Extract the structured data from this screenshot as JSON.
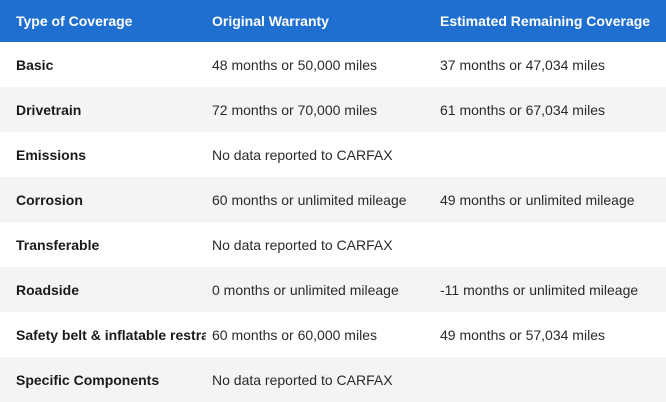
{
  "header": {
    "type_of_coverage": "Type of Coverage",
    "original_warranty": "Original Warranty",
    "estimated_remaining": "Estimated Remaining Coverage"
  },
  "rows": [
    {
      "type": "Basic",
      "original": "48 months or 50,000 miles",
      "remaining": "37 months or 47,034 miles"
    },
    {
      "type": "Drivetrain",
      "original": "72 months or 70,000 miles",
      "remaining": "61 months or 67,034 miles"
    },
    {
      "type": "Emissions",
      "original": "No data reported to CARFAX",
      "remaining": ""
    },
    {
      "type": "Corrosion",
      "original": "60 months or unlimited mileage",
      "remaining": "49 months or unlimited mileage"
    },
    {
      "type": "Transferable",
      "original": "No data reported to CARFAX",
      "remaining": ""
    },
    {
      "type": "Roadside",
      "original": "0 months or unlimited mileage",
      "remaining": "-11 months or unlimited mileage"
    },
    {
      "type": "Safety belt & inflatable restraint",
      "original": "60 months or 60,000 miles",
      "remaining": "49 months or 57,034 miles"
    },
    {
      "type": "Specific Components",
      "original": "No data reported to CARFAX",
      "remaining": ""
    }
  ],
  "colors": {
    "header_bg": "#1f6fd0",
    "header_text": "#ffffff",
    "stripe_bg": "#f4f4f4"
  }
}
